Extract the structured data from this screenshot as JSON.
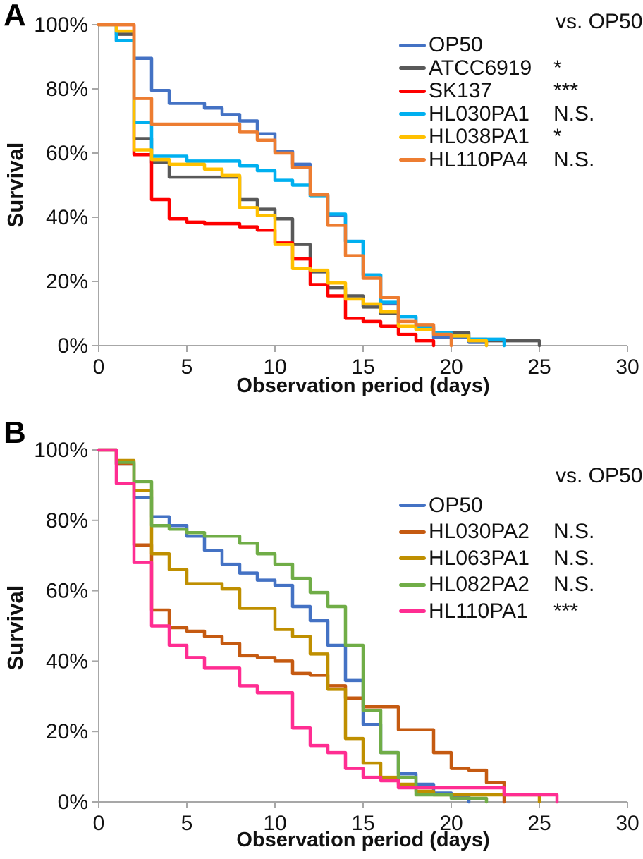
{
  "figure": {
    "panels": [
      {
        "label": "A",
        "ylabel": "Survival",
        "xlabel": "Observation period (days)",
        "legend_header": "vs. OP50"
      },
      {
        "label": "B",
        "ylabel": "Survival",
        "xlabel": "Observation period (days)",
        "legend_header": "vs. OP50"
      }
    ],
    "axis_color": "#a7a7a7",
    "text_color": "#111111"
  },
  "chart_data": [
    {
      "type": "line",
      "subtype": "kaplan-meier-step",
      "panel": "A",
      "title": "",
      "xlabel": "Observation period (days)",
      "ylabel": "Survival",
      "xlim": [
        0,
        30
      ],
      "ylim": [
        0,
        100
      ],
      "xticks": [
        0,
        5,
        10,
        15,
        20,
        25,
        30
      ],
      "ytick_values": [
        100,
        80,
        60,
        40,
        20,
        0
      ],
      "ytick_labels": [
        "100%",
        "80%",
        "60%",
        "40%",
        "20%",
        "0%"
      ],
      "grid": false,
      "legend_position": "upper right",
      "legend_header": "vs. OP50",
      "series": [
        {
          "name": "OP50",
          "color": "#4472C4",
          "vs_op50": "",
          "points": [
            [
              0,
              100
            ],
            [
              1,
              95
            ],
            [
              2,
              89.5
            ],
            [
              3,
              79.5
            ],
            [
              4,
              75.5
            ],
            [
              6,
              74
            ],
            [
              7,
              72
            ],
            [
              8,
              70
            ],
            [
              9,
              66
            ],
            [
              10,
              60.5
            ],
            [
              11,
              56.5
            ],
            [
              12,
              47
            ],
            [
              13,
              40.5
            ],
            [
              14,
              32.5
            ],
            [
              15,
              22
            ],
            [
              16,
              13
            ],
            [
              17,
              9
            ],
            [
              18,
              5
            ],
            [
              19,
              2.5
            ],
            [
              21,
              1
            ],
            [
              22,
              0
            ]
          ]
        },
        {
          "name": "ATCC6919",
          "color": "#595959",
          "vs_op50": "*",
          "points": [
            [
              0,
              100
            ],
            [
              1,
              97
            ],
            [
              2,
              64.5
            ],
            [
              3,
              57
            ],
            [
              4,
              52.5
            ],
            [
              8,
              45.5
            ],
            [
              9,
              42.5
            ],
            [
              10,
              39.5
            ],
            [
              11,
              31.5
            ],
            [
              12,
              23
            ],
            [
              13,
              18
            ],
            [
              14,
              15.5
            ],
            [
              15,
              12
            ],
            [
              16,
              10
            ],
            [
              17,
              6
            ],
            [
              18,
              5.5
            ],
            [
              19,
              4
            ],
            [
              21,
              2
            ],
            [
              22,
              1.5
            ],
            [
              25,
              0
            ]
          ]
        },
        {
          "name": "SK137",
          "color": "#FE0000",
          "vs_op50": "***",
          "points": [
            [
              0,
              100
            ],
            [
              2,
              59.5
            ],
            [
              3,
              45.5
            ],
            [
              4,
              39.5
            ],
            [
              5,
              38.5
            ],
            [
              6,
              38
            ],
            [
              8,
              37
            ],
            [
              9,
              36
            ],
            [
              10,
              32
            ],
            [
              11,
              27
            ],
            [
              12,
              19
            ],
            [
              13,
              15.5
            ],
            [
              14,
              8.5
            ],
            [
              15,
              7.5
            ],
            [
              16,
              6
            ],
            [
              17,
              3.5
            ],
            [
              18,
              1.5
            ],
            [
              19,
              0
            ]
          ]
        },
        {
          "name": "HL030PA1",
          "color": "#00B0F0",
          "vs_op50": "N.S.",
          "points": [
            [
              0,
              100
            ],
            [
              1,
              95
            ],
            [
              2,
              69.5
            ],
            [
              3,
              59
            ],
            [
              5,
              57.5
            ],
            [
              8,
              56
            ],
            [
              9,
              54.5
            ],
            [
              10,
              51.5
            ],
            [
              11,
              50
            ],
            [
              12,
              46.5
            ],
            [
              13,
              41
            ],
            [
              14,
              32.5
            ],
            [
              15,
              22
            ],
            [
              16,
              13.5
            ],
            [
              17,
              9
            ],
            [
              18,
              6
            ],
            [
              19,
              4
            ],
            [
              20,
              3
            ],
            [
              21,
              2
            ],
            [
              23,
              0
            ]
          ]
        },
        {
          "name": "HL038PA1",
          "color": "#FFC000",
          "vs_op50": "*",
          "points": [
            [
              0,
              100
            ],
            [
              1,
              98
            ],
            [
              2,
              61
            ],
            [
              3,
              58
            ],
            [
              4,
              56.5
            ],
            [
              6,
              55
            ],
            [
              7,
              53
            ],
            [
              8,
              43
            ],
            [
              9,
              40.5
            ],
            [
              10,
              31.5
            ],
            [
              11,
              24
            ],
            [
              12,
              23.5
            ],
            [
              13,
              19.5
            ],
            [
              14,
              14.5
            ],
            [
              15,
              13
            ],
            [
              16,
              10.5
            ],
            [
              17,
              6
            ],
            [
              18,
              5
            ],
            [
              19,
              3.5
            ],
            [
              20,
              3
            ],
            [
              21,
              1.5
            ],
            [
              22,
              0
            ]
          ]
        },
        {
          "name": "HL110PA4",
          "color": "#ED7D31",
          "vs_op50": "N.S.",
          "points": [
            [
              0,
              100
            ],
            [
              2,
              77
            ],
            [
              3,
              69
            ],
            [
              8,
              66.5
            ],
            [
              9,
              64
            ],
            [
              10,
              60
            ],
            [
              11,
              55.5
            ],
            [
              12,
              47
            ],
            [
              13,
              37.5
            ],
            [
              14,
              28
            ],
            [
              15,
              21
            ],
            [
              16,
              15
            ],
            [
              17,
              7.5
            ],
            [
              18,
              6.5
            ],
            [
              19,
              3.5
            ],
            [
              20,
              0
            ]
          ]
        }
      ]
    },
    {
      "type": "line",
      "subtype": "kaplan-meier-step",
      "panel": "B",
      "title": "",
      "xlabel": "Observation period (days)",
      "ylabel": "Survival",
      "xlim": [
        0,
        30
      ],
      "ylim": [
        0,
        100
      ],
      "xticks": [
        0,
        5,
        10,
        15,
        20,
        25,
        30
      ],
      "ytick_values": [
        100,
        80,
        60,
        40,
        20,
        0
      ],
      "ytick_labels": [
        "100%",
        "80%",
        "60%",
        "40%",
        "20%",
        "0%"
      ],
      "grid": false,
      "legend_position": "upper right",
      "legend_header": "vs. OP50",
      "series": [
        {
          "name": "OP50",
          "color": "#4472C4",
          "vs_op50": "",
          "points": [
            [
              0,
              100
            ],
            [
              1,
              96
            ],
            [
              2,
              86.5
            ],
            [
              3,
              81
            ],
            [
              4,
              78.5
            ],
            [
              5,
              75.5
            ],
            [
              6,
              71.5
            ],
            [
              7,
              67.5
            ],
            [
              8,
              65
            ],
            [
              9,
              63
            ],
            [
              10,
              61.5
            ],
            [
              11,
              55.5
            ],
            [
              12,
              51.5
            ],
            [
              13,
              44.5
            ],
            [
              14,
              34.5
            ],
            [
              15,
              22
            ],
            [
              16,
              14
            ],
            [
              17,
              8
            ],
            [
              18,
              5
            ],
            [
              19,
              2.5
            ],
            [
              20,
              1.5
            ],
            [
              21,
              0
            ]
          ]
        },
        {
          "name": "HL030PA2",
          "color": "#C55A11",
          "vs_op50": "N.S.",
          "points": [
            [
              0,
              100
            ],
            [
              1,
              96
            ],
            [
              2,
              73
            ],
            [
              3,
              54.5
            ],
            [
              4,
              49.5
            ],
            [
              5,
              48.5
            ],
            [
              6,
              47
            ],
            [
              7,
              45
            ],
            [
              8,
              41.5
            ],
            [
              9,
              41
            ],
            [
              10,
              40
            ],
            [
              11,
              36.5
            ],
            [
              12,
              36
            ],
            [
              13,
              33
            ],
            [
              14,
              29.5
            ],
            [
              15,
              27
            ],
            [
              17,
              20.5
            ],
            [
              19,
              14
            ],
            [
              20,
              9.5
            ],
            [
              21,
              9
            ],
            [
              22,
              5.5
            ],
            [
              23,
              0
            ]
          ]
        },
        {
          "name": "HL063PA1",
          "color": "#BF8F00",
          "vs_op50": "N.S.",
          "points": [
            [
              0,
              100
            ],
            [
              1,
              97
            ],
            [
              2,
              88.5
            ],
            [
              3,
              70.5
            ],
            [
              4,
              66
            ],
            [
              5,
              62
            ],
            [
              7,
              60.5
            ],
            [
              8,
              55
            ],
            [
              10,
              49
            ],
            [
              11,
              47
            ],
            [
              12,
              42
            ],
            [
              13,
              32
            ],
            [
              14,
              18
            ],
            [
              15,
              11
            ],
            [
              16,
              7
            ],
            [
              17,
              5
            ],
            [
              18,
              3
            ],
            [
              19,
              2
            ],
            [
              25,
              0
            ]
          ]
        },
        {
          "name": "HL082PA2",
          "color": "#70AD47",
          "vs_op50": "N.S.",
          "points": [
            [
              0,
              100
            ],
            [
              1,
              96.5
            ],
            [
              2,
              91
            ],
            [
              3,
              78.5
            ],
            [
              4,
              77.5
            ],
            [
              5,
              76.5
            ],
            [
              6,
              75.5
            ],
            [
              8,
              73.5
            ],
            [
              9,
              70.5
            ],
            [
              10,
              67.5
            ],
            [
              11,
              63.5
            ],
            [
              12,
              59.5
            ],
            [
              13,
              55.5
            ],
            [
              14,
              44.5
            ],
            [
              15,
              26
            ],
            [
              16,
              14
            ],
            [
              17,
              7
            ],
            [
              18,
              2
            ],
            [
              20,
              1
            ],
            [
              22,
              0
            ]
          ]
        },
        {
          "name": "HL110PA1",
          "color": "#FF2D92",
          "vs_op50": "***",
          "points": [
            [
              0,
              100
            ],
            [
              1,
              90.5
            ],
            [
              2,
              68
            ],
            [
              3,
              50
            ],
            [
              4,
              44.5
            ],
            [
              5,
              41
            ],
            [
              6,
              38
            ],
            [
              8,
              33
            ],
            [
              9,
              31
            ],
            [
              11,
              21
            ],
            [
              12,
              16
            ],
            [
              13,
              14
            ],
            [
              14,
              9.5
            ],
            [
              15,
              7
            ],
            [
              16,
              6
            ],
            [
              17,
              4
            ],
            [
              23,
              2
            ],
            [
              26,
              0
            ]
          ]
        }
      ]
    }
  ]
}
